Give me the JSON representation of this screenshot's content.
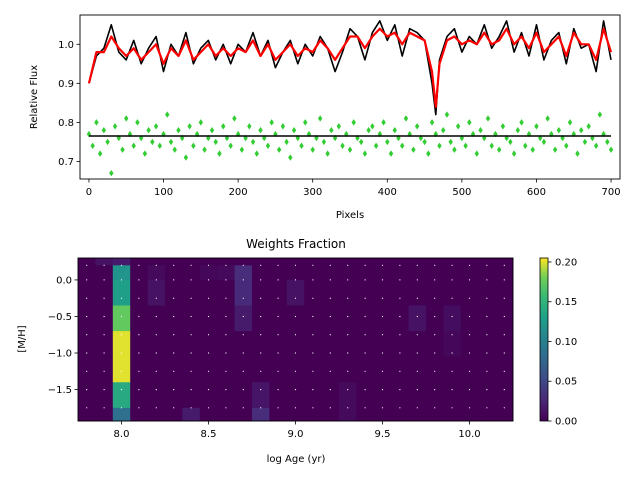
{
  "chart_data": [
    {
      "type": "line",
      "xlabel": "Pixels",
      "ylabel": "Relative Flux",
      "xlim": [
        -12,
        712
      ],
      "ylim": [
        0.655,
        1.075
      ],
      "xticks": [
        "0",
        "100",
        "200",
        "300",
        "400",
        "500",
        "600",
        "700"
      ],
      "yticks": [
        "0.7",
        "0.8",
        "0.9",
        "1.0"
      ],
      "grid": false,
      "legend": "none",
      "series": [
        {
          "role": "observed spectrum",
          "color": "#000000",
          "style": "line",
          "x": [
            0,
            10,
            20,
            30,
            40,
            50,
            60,
            70,
            80,
            90,
            100,
            110,
            120,
            130,
            140,
            150,
            160,
            170,
            180,
            190,
            200,
            210,
            220,
            230,
            240,
            250,
            260,
            270,
            280,
            290,
            300,
            310,
            320,
            330,
            340,
            350,
            360,
            370,
            380,
            390,
            400,
            410,
            420,
            430,
            440,
            450,
            460,
            465,
            470,
            480,
            490,
            500,
            510,
            520,
            530,
            540,
            550,
            560,
            570,
            580,
            590,
            600,
            610,
            620,
            630,
            640,
            650,
            660,
            670,
            680,
            690,
            700
          ],
          "y": [
            0.9,
            0.97,
            0.99,
            1.05,
            0.98,
            0.96,
            1.01,
            0.95,
            0.99,
            1.02,
            0.93,
            1.0,
            0.97,
            1.03,
            0.95,
            0.99,
            1.01,
            0.96,
            1.0,
            0.95,
            1.0,
            0.98,
            1.03,
            0.97,
            1.01,
            0.94,
            0.98,
            1.01,
            0.95,
            1.0,
            0.97,
            1.02,
            0.99,
            0.93,
            0.98,
            1.04,
            1.02,
            0.96,
            1.03,
            1.06,
            1.01,
            1.05,
            0.97,
            1.04,
            1.03,
            1.01,
            0.9,
            0.82,
            0.96,
            1.02,
            1.04,
            0.98,
            1.02,
            1.0,
            1.05,
            0.99,
            1.02,
            1.06,
            0.98,
            1.03,
            0.97,
            1.05,
            0.96,
            1.01,
            1.03,
            0.95,
            1.04,
            0.99,
            1.0,
            0.93,
            1.06,
            0.96
          ]
        },
        {
          "role": "best fit",
          "color": "#ff0000",
          "style": "line",
          "x": [
            0,
            10,
            20,
            30,
            40,
            50,
            60,
            70,
            80,
            90,
            100,
            110,
            120,
            130,
            140,
            150,
            160,
            170,
            180,
            190,
            200,
            210,
            220,
            230,
            240,
            250,
            260,
            270,
            280,
            290,
            300,
            310,
            320,
            330,
            340,
            350,
            360,
            370,
            380,
            390,
            400,
            410,
            420,
            430,
            440,
            450,
            460,
            465,
            470,
            480,
            490,
            500,
            510,
            520,
            530,
            540,
            550,
            560,
            570,
            580,
            590,
            600,
            610,
            620,
            630,
            640,
            650,
            660,
            670,
            680,
            690,
            700
          ],
          "y": [
            0.9,
            0.98,
            0.98,
            1.02,
            0.99,
            0.97,
            0.99,
            0.96,
            0.98,
            1.0,
            0.95,
            0.99,
            0.97,
            1.01,
            0.96,
            0.98,
            1.0,
            0.97,
            0.99,
            0.97,
            0.99,
            0.98,
            1.01,
            0.97,
            1.0,
            0.96,
            0.98,
            1.0,
            0.97,
            0.99,
            0.98,
            1.01,
            0.99,
            0.96,
            0.99,
            1.02,
            1.02,
            0.99,
            1.02,
            1.04,
            1.02,
            1.03,
            1.0,
            1.03,
            1.02,
            1.01,
            0.93,
            0.84,
            0.95,
            1.01,
            1.02,
            1.0,
            1.01,
            1.0,
            1.03,
            1.0,
            1.01,
            1.04,
            1.0,
            1.02,
            0.99,
            1.03,
            0.98,
            1.0,
            1.02,
            0.97,
            1.03,
            1.0,
            1.0,
            0.96,
            1.04,
            0.98
          ]
        },
        {
          "role": "residuals",
          "color": "#32cd32",
          "style": "diamond-markers",
          "x": [
            0,
            5,
            10,
            15,
            20,
            25,
            30,
            35,
            40,
            45,
            50,
            55,
            60,
            65,
            70,
            75,
            80,
            85,
            90,
            95,
            100,
            105,
            110,
            115,
            120,
            125,
            130,
            135,
            140,
            145,
            150,
            155,
            160,
            165,
            170,
            175,
            180,
            185,
            190,
            195,
            200,
            205,
            210,
            215,
            220,
            225,
            230,
            235,
            240,
            245,
            250,
            255,
            260,
            265,
            270,
            275,
            280,
            285,
            290,
            295,
            300,
            305,
            310,
            315,
            320,
            325,
            330,
            335,
            340,
            345,
            350,
            355,
            360,
            365,
            370,
            375,
            380,
            385,
            390,
            395,
            400,
            405,
            410,
            415,
            420,
            425,
            430,
            435,
            440,
            445,
            450,
            455,
            460,
            465,
            470,
            475,
            480,
            485,
            490,
            495,
            500,
            505,
            510,
            515,
            520,
            525,
            530,
            535,
            540,
            545,
            550,
            555,
            560,
            565,
            570,
            575,
            580,
            585,
            590,
            595,
            600,
            605,
            610,
            615,
            620,
            625,
            630,
            635,
            640,
            645,
            650,
            655,
            660,
            665,
            670,
            675,
            680,
            685,
            690,
            695,
            700
          ],
          "y": [
            0.77,
            0.74,
            0.8,
            0.72,
            0.78,
            0.75,
            0.67,
            0.79,
            0.76,
            0.73,
            0.81,
            0.77,
            0.74,
            0.8,
            0.76,
            0.72,
            0.78,
            0.75,
            0.79,
            0.74,
            0.77,
            0.82,
            0.75,
            0.73,
            0.78,
            0.76,
            0.71,
            0.79,
            0.74,
            0.77,
            0.8,
            0.73,
            0.76,
            0.78,
            0.75,
            0.72,
            0.79,
            0.76,
            0.74,
            0.81,
            0.77,
            0.73,
            0.76,
            0.79,
            0.75,
            0.72,
            0.78,
            0.76,
            0.74,
            0.8,
            0.77,
            0.73,
            0.79,
            0.75,
            0.71,
            0.78,
            0.76,
            0.74,
            0.8,
            0.77,
            0.73,
            0.76,
            0.81,
            0.75,
            0.72,
            0.78,
            0.76,
            0.79,
            0.74,
            0.77,
            0.73,
            0.8,
            0.76,
            0.75,
            0.72,
            0.78,
            0.79,
            0.74,
            0.77,
            0.8,
            0.75,
            0.72,
            0.78,
            0.76,
            0.74,
            0.81,
            0.77,
            0.73,
            0.79,
            0.76,
            0.75,
            0.72,
            0.8,
            0.77,
            0.74,
            0.78,
            0.82,
            0.75,
            0.73,
            0.79,
            0.76,
            0.74,
            0.8,
            0.77,
            0.72,
            0.78,
            0.76,
            0.81,
            0.74,
            0.77,
            0.73,
            0.79,
            0.76,
            0.75,
            0.72,
            0.78,
            0.8,
            0.74,
            0.77,
            0.73,
            0.79,
            0.76,
            0.75,
            0.81,
            0.77,
            0.73,
            0.78,
            0.76,
            0.74,
            0.8,
            0.77,
            0.72,
            0.78,
            0.75,
            0.79,
            0.76,
            0.74,
            0.82,
            0.77,
            0.75,
            0.73
          ]
        },
        {
          "role": "residual baseline",
          "color": "#000000",
          "style": "line",
          "x": [
            0,
            700
          ],
          "y": [
            0.765,
            0.765
          ]
        }
      ]
    },
    {
      "type": "heatmap",
      "title": "Weights Fraction",
      "xlabel": "log Age (yr)",
      "ylabel": "[M/H]",
      "xlim": [
        7.75,
        10.25
      ],
      "ylim": [
        -1.93,
        0.3
      ],
      "xticks": [
        "8.0",
        "8.5",
        "9.0",
        "9.5",
        "10.0"
      ],
      "yticks": [
        "0.0",
        "-0.5",
        "-1.0",
        "-1.5"
      ],
      "x_edges": [
        7.75,
        7.85,
        7.95,
        8.05,
        8.15,
        8.25,
        8.35,
        8.45,
        8.55,
        8.65,
        8.75,
        8.85,
        8.95,
        9.05,
        9.15,
        9.25,
        9.35,
        9.45,
        9.55,
        9.65,
        9.75,
        9.85,
        9.95,
        10.05,
        10.15,
        10.25
      ],
      "y_edges": [
        -1.93,
        -1.75,
        -1.4,
        -1.05,
        -0.7,
        -0.35,
        0.0,
        0.2,
        0.3
      ],
      "vmin": 0.0,
      "vmax": 0.205,
      "colormap": "viridis",
      "colorbar_ticks": [
        "0.00",
        "0.05",
        "0.10",
        "0.15",
        "0.20"
      ],
      "weights_rows_top_to_bottom": [
        [
          0.0,
          0.012,
          0.018,
          0.0,
          0.0,
          0.0,
          0.0,
          0.0,
          0.0,
          0.0,
          0.0,
          0.0,
          0.0,
          0.0,
          0.0,
          0.0,
          0.0,
          0.0,
          0.0,
          0.0,
          0.0,
          0.0,
          0.0,
          0.0,
          0.0
        ],
        [
          0.0,
          0.0,
          0.12,
          0.0,
          0.006,
          0.0,
          0.0,
          0.004,
          0.006,
          0.03,
          0.0,
          0.0,
          0.0,
          0.0,
          0.0,
          0.0,
          0.0,
          0.0,
          0.0,
          0.0,
          0.0,
          0.0,
          0.0,
          0.0,
          0.0
        ],
        [
          0.0,
          0.0,
          0.13,
          0.0,
          0.012,
          0.0,
          0.0,
          0.0,
          0.0,
          0.028,
          0.0,
          0.0,
          0.012,
          0.0,
          0.0,
          0.0,
          0.0,
          0.0,
          0.0,
          0.0,
          0.0,
          0.0,
          0.0,
          0.0,
          0.0
        ],
        [
          0.0,
          0.0,
          0.175,
          0.0,
          0.0,
          0.0,
          0.0,
          0.0,
          0.0,
          0.018,
          0.0,
          0.0,
          0.0,
          0.0,
          0.0,
          0.0,
          0.0,
          0.0,
          0.0,
          0.012,
          0.0,
          0.008,
          0.0,
          0.0,
          0.0
        ],
        [
          0.0,
          0.0,
          0.2,
          0.0,
          0.0,
          0.0,
          0.0,
          0.0,
          0.0,
          0.0,
          0.0,
          0.0,
          0.0,
          0.0,
          0.0,
          0.0,
          0.0,
          0.0,
          0.0,
          0.0,
          0.0,
          0.004,
          0.0,
          0.0,
          0.0
        ],
        [
          0.0,
          0.0,
          0.2,
          0.0,
          0.0,
          0.0,
          0.0,
          0.0,
          0.0,
          0.0,
          0.0,
          0.0,
          0.0,
          0.0,
          0.0,
          0.0,
          0.0,
          0.0,
          0.0,
          0.0,
          0.0,
          0.0,
          0.0,
          0.0,
          0.0
        ],
        [
          0.0,
          0.0,
          0.14,
          0.0,
          0.0,
          0.0,
          0.0,
          0.0,
          0.0,
          0.0,
          0.014,
          0.0,
          0.0,
          0.0,
          0.0,
          0.006,
          0.0,
          0.0,
          0.0,
          0.0,
          0.0,
          0.0,
          0.0,
          0.0,
          0.0
        ],
        [
          0.0,
          0.0,
          0.085,
          0.0,
          0.0,
          0.0,
          0.018,
          0.0,
          0.0,
          0.0,
          0.03,
          0.0,
          0.0,
          0.0,
          0.0,
          0.006,
          0.0,
          0.0,
          0.0,
          0.0,
          0.0,
          0.0,
          0.0,
          0.0,
          0.0
        ]
      ]
    }
  ]
}
